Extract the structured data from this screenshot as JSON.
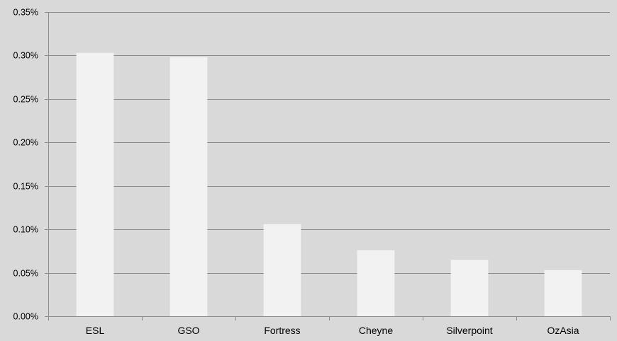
{
  "chart_data": {
    "type": "bar",
    "title": "",
    "xlabel": "",
    "ylabel": "",
    "categories": [
      "ESL",
      "GSO",
      "Fortress",
      "Cheyne",
      "Silverpoint",
      "OzAsia"
    ],
    "values": [
      0.303,
      0.298,
      0.106,
      0.076,
      0.065,
      0.053
    ],
    "ylim": [
      0,
      0.35
    ],
    "yticks": [
      "0.00%",
      "0.05%",
      "0.10%",
      "0.15%",
      "0.20%",
      "0.25%",
      "0.30%",
      "0.35%"
    ],
    "grid": true,
    "legend": "none",
    "colors": {
      "background": "#d9d9d9",
      "bar": "#f2f2f2",
      "gridline": "#8c8c8c",
      "axis": "#8c8c8c",
      "text": "#000000"
    }
  }
}
